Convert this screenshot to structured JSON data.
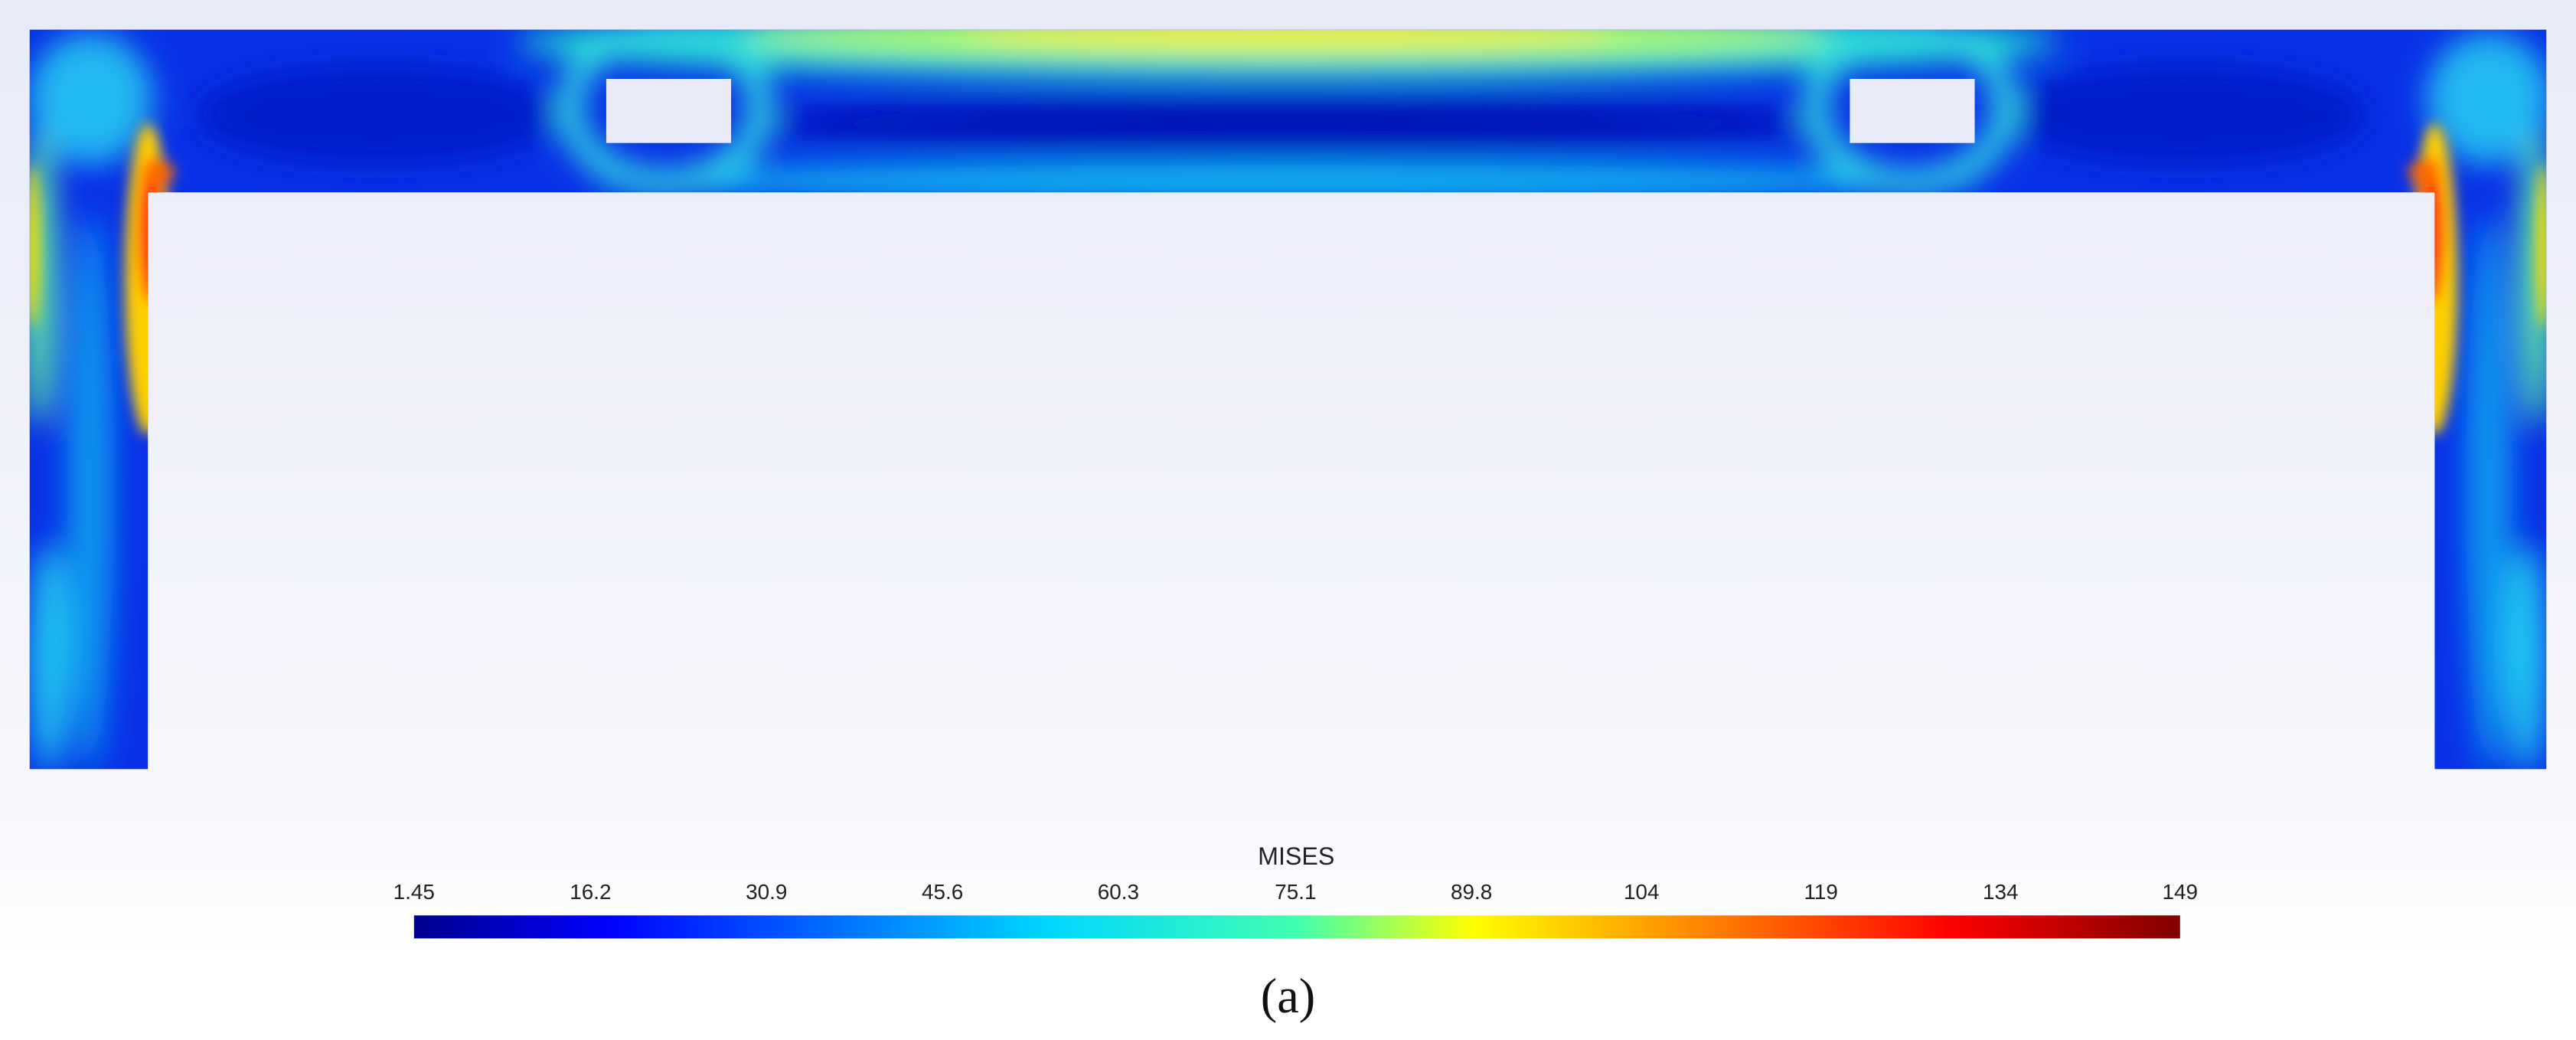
{
  "colorbar": {
    "title": "MISES",
    "lim": [
      1.45,
      149
    ],
    "ticks": [
      1.45,
      16.2,
      30.9,
      45.6,
      60.3,
      75.1,
      89.8,
      104,
      119,
      134,
      149
    ]
  },
  "caption": "(a)"
}
